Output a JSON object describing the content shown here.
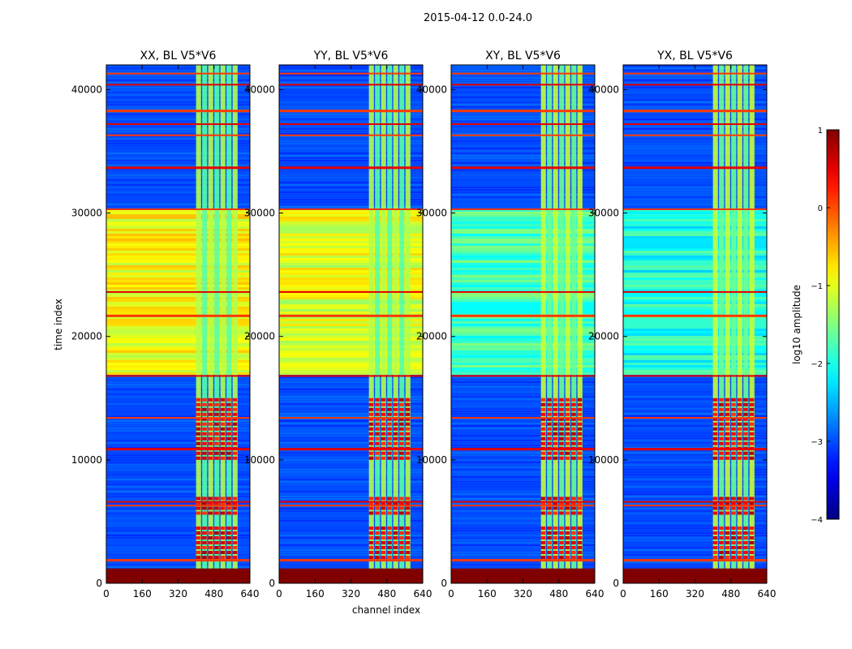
{
  "chart_data": {
    "type": "heatmap",
    "suptitle": "2015-04-12 0.0-24.0",
    "colormap": "jet",
    "xlabel": "channel index",
    "ylabel": "time index",
    "xlim": [
      0,
      640
    ],
    "ylim": [
      0,
      42000
    ],
    "xticks": [
      0,
      160,
      320,
      480,
      640
    ],
    "yticks": [
      0,
      10000,
      20000,
      30000,
      40000
    ],
    "colorbar": {
      "label": "log10 amplitude",
      "range": [
        -4,
        1
      ],
      "ticks": [
        1,
        0,
        -1,
        -2,
        -3,
        -4
      ],
      "tick_labels": [
        "1",
        "0",
        "−1",
        "−2",
        "−3",
        "−4"
      ]
    },
    "panels": [
      {
        "title": "XX, BL V5*V6",
        "background_level": -3.0,
        "mid_band_level": -0.9,
        "rfi_band_level": -1.5,
        "rfi_band_channels": [
          400,
          590
        ]
      },
      {
        "title": "YY, BL V5*V6",
        "background_level": -3.0,
        "mid_band_level": -1.0,
        "rfi_band_level": -1.5,
        "rfi_band_channels": [
          400,
          590
        ]
      },
      {
        "title": "XY, BL V5*V6",
        "background_level": -3.0,
        "mid_band_level": -1.8,
        "rfi_band_level": -1.4,
        "rfi_band_channels": [
          400,
          590
        ]
      },
      {
        "title": "YX, BL V5*V6",
        "background_level": -3.0,
        "mid_band_level": -2.0,
        "rfi_band_level": -1.4,
        "rfi_band_channels": [
          400,
          590
        ]
      }
    ],
    "features": {
      "saturated_bottom_rows": [
        0,
        1200
      ],
      "mid_band_rows": [
        17000,
        30300
      ],
      "hot_rfi_blocks_rows": [
        [
          2200,
          4600
        ],
        [
          5800,
          7000
        ],
        [
          10200,
          15000
        ]
      ],
      "flagged_rows": [
        1900,
        6600,
        6300,
        10900,
        13400,
        16800,
        21700,
        23600,
        30300,
        33700,
        36300,
        37200,
        38300,
        40400,
        41300
      ]
    }
  }
}
